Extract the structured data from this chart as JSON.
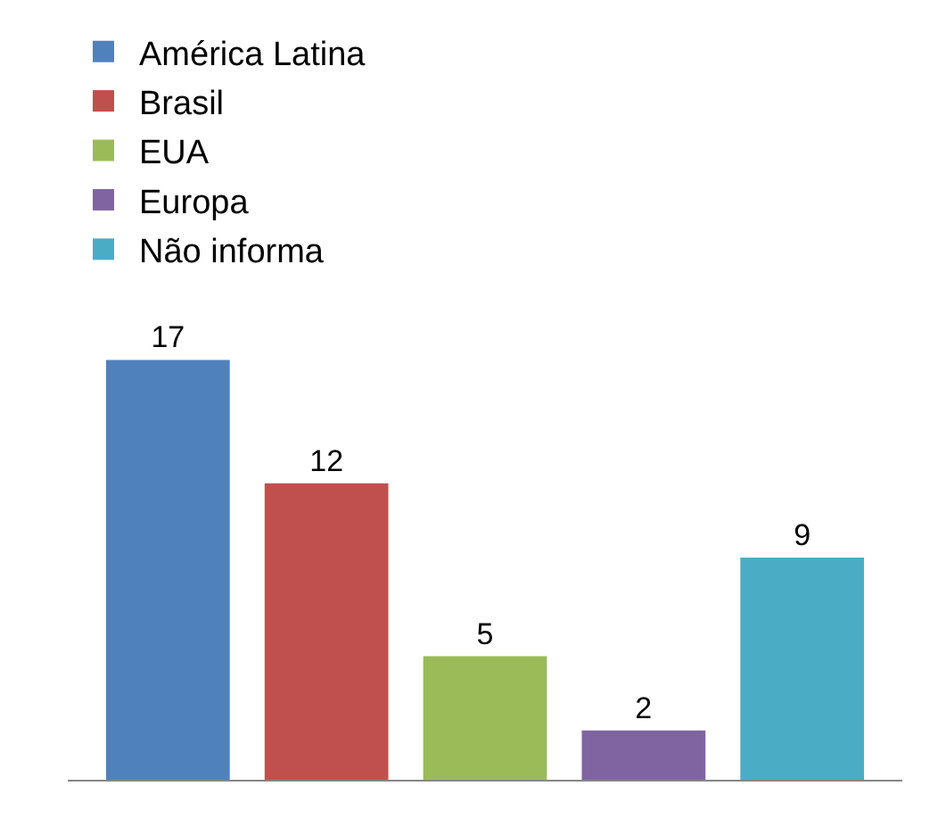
{
  "chart_data": {
    "type": "bar",
    "categories": [
      null
    ],
    "series": [
      {
        "name": "América Latina",
        "color": "#4f81bd",
        "values": [
          17
        ]
      },
      {
        "name": "Brasil",
        "color": "#c0504d",
        "values": [
          12
        ]
      },
      {
        "name": "EUA",
        "color": "#9bbb59",
        "values": [
          5
        ]
      },
      {
        "name": "Europa",
        "color": "#8064a2",
        "values": [
          2
        ]
      },
      {
        "name": "Não informa",
        "color": "#4bacc6",
        "values": [
          9
        ]
      }
    ],
    "data_labels": true,
    "legend": "top",
    "tick_labels": false
  }
}
